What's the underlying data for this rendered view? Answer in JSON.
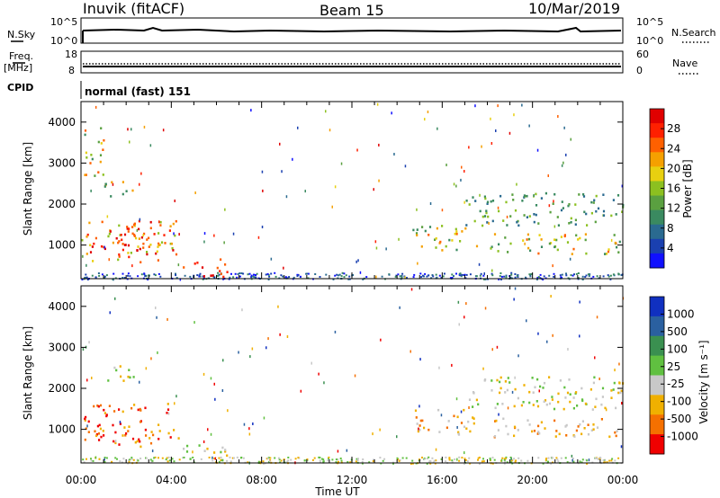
{
  "header": {
    "station": "Inuvik (fitACF)",
    "beam": "Beam 15",
    "date": "10/Mar/2019"
  },
  "noise_panel": {
    "left_label": "N.Sky",
    "right_label": "N.Search",
    "left_ticks": [
      "10^5",
      "10^0"
    ],
    "right_ticks": [
      "10^5",
      "10^0"
    ]
  },
  "freq_panel": {
    "left_label_line1": "Freq.",
    "left_label_line2": "[MHz]",
    "right_label": "Nave",
    "left_ticks": [
      "18",
      "8"
    ],
    "right_ticks": [
      "60",
      "0"
    ]
  },
  "cpid_panel": {
    "label": "CPID",
    "value": "normal (fast) 151"
  },
  "chart_data": [
    {
      "type": "heatmap",
      "title": "Power",
      "ylabel": "Slant Range [km]",
      "xlabel": "",
      "ylim": [
        180,
        4500
      ],
      "yticks": [
        "1000",
        "2000",
        "3000",
        "4000"
      ],
      "colorbar": {
        "label": "Power [dB]",
        "ticks": [
          "4",
          "8",
          "12",
          "16",
          "20",
          "24",
          "28"
        ],
        "colors": [
          "#1010ff",
          "#1a40b0",
          "#2a6a90",
          "#3a8a60",
          "#5aa040",
          "#8cc020",
          "#e8d010",
          "#f5a000",
          "#ff6000",
          "#ff2000",
          "#e00000"
        ]
      },
      "regions": [
        {
          "t0": 0.0,
          "t1": 4.3,
          "r0": 600,
          "r1": 1650,
          "level": "high",
          "note": "strong echo band"
        },
        {
          "t0": 1.5,
          "t1": 3.3,
          "r0": 700,
          "r1": 1500,
          "level": "very_high"
        },
        {
          "t0": 4.5,
          "t1": 6.5,
          "r0": 250,
          "r1": 700,
          "level": "very_high"
        },
        {
          "t0": 1.0,
          "t1": 2.5,
          "r0": 2200,
          "r1": 2600,
          "level": "medium"
        },
        {
          "t0": 0.0,
          "t1": 1.0,
          "r0": 2700,
          "r1": 3900,
          "level": "medium"
        },
        {
          "t0": 14.5,
          "t1": 17.5,
          "r0": 900,
          "r1": 1500,
          "level": "medium"
        },
        {
          "t0": 17.0,
          "t1": 24.0,
          "r0": 1500,
          "r1": 2300,
          "level": "low"
        },
        {
          "t0": 18.0,
          "t1": 24.0,
          "r0": 800,
          "r1": 1300,
          "level": "medium"
        }
      ]
    },
    {
      "type": "heatmap",
      "title": "Velocity",
      "ylabel": "Slant Range [km]",
      "xlabel": "Time UT",
      "ylim": [
        180,
        4500
      ],
      "yticks": [
        "1000",
        "2000",
        "3000",
        "4000"
      ],
      "xticks": [
        "00:00",
        "04:00",
        "08:00",
        "12:00",
        "16:00",
        "20:00",
        "00:00"
      ],
      "xlim_hours": [
        0,
        24
      ],
      "colorbar": {
        "label": "Velocity [m s⁻¹]",
        "ticks": [
          "1000",
          "500",
          "100",
          "25",
          "-25",
          "-100",
          "-500",
          "-1000"
        ],
        "colors": [
          "#1030c0",
          "#2a60a0",
          "#3a9050",
          "#60c040",
          "#c8c8c8",
          "#f0b000",
          "#f57000",
          "#f00000"
        ]
      },
      "regions": [
        {
          "t0": 0.0,
          "t1": 4.3,
          "r0": 600,
          "r1": 1650,
          "level": "away_strong"
        },
        {
          "t0": 4.5,
          "t1": 6.5,
          "r0": 250,
          "r1": 700,
          "level": "toward_weak"
        },
        {
          "t0": 1.0,
          "t1": 2.5,
          "r0": 2200,
          "r1": 2600,
          "level": "neutral"
        },
        {
          "t0": 14.5,
          "t1": 17.5,
          "r0": 900,
          "r1": 1500,
          "level": "away_mid"
        },
        {
          "t0": 17.0,
          "t1": 24.0,
          "r0": 1500,
          "r1": 2300,
          "level": "neutral"
        },
        {
          "t0": 18.0,
          "t1": 24.0,
          "r0": 800,
          "r1": 1300,
          "level": "away_mid"
        }
      ]
    }
  ]
}
